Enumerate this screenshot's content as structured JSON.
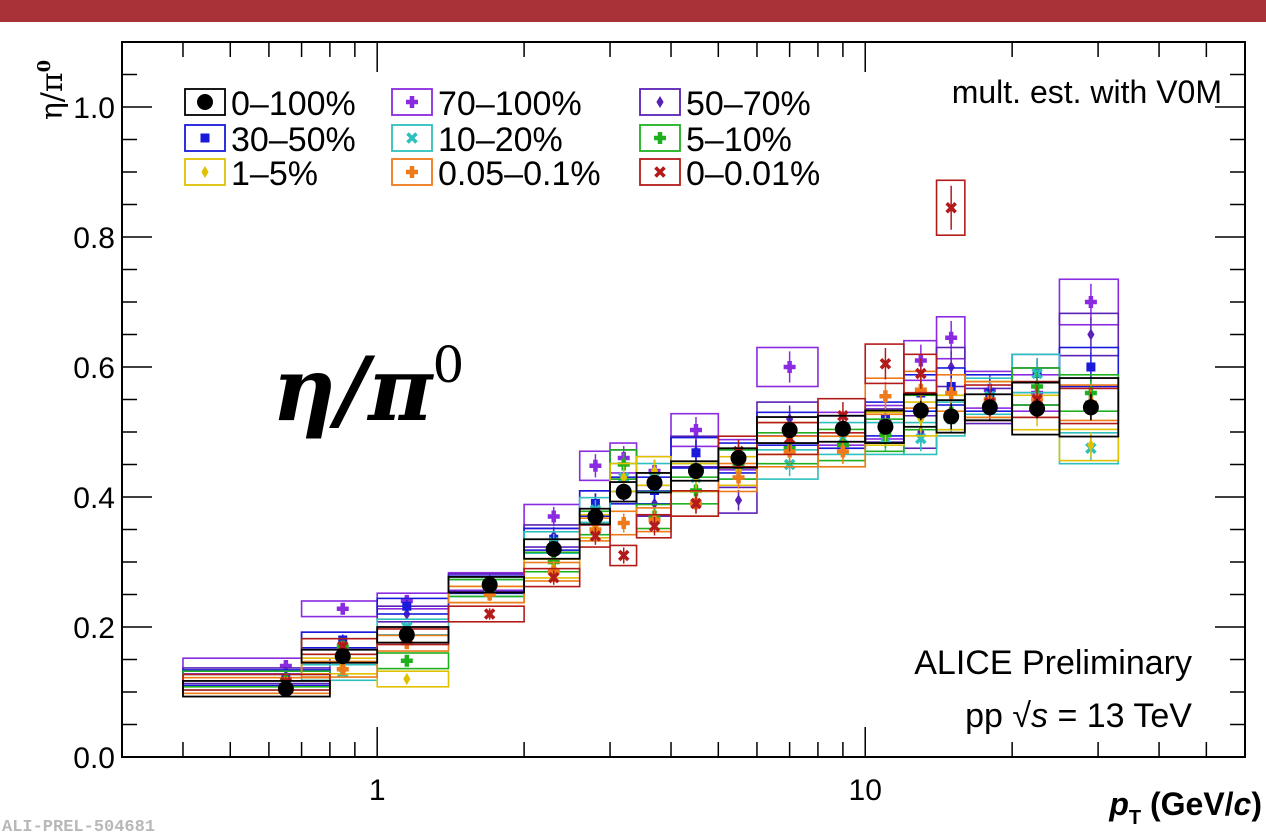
{
  "colors": {
    "topbar": "#a83237"
  },
  "footer_id": "ALI-PREL-504681",
  "chart_data": {
    "type": "scatter",
    "x_scale": "log",
    "xlim": [
      0.3,
      60
    ],
    "ylim": [
      0.0,
      1.1
    ],
    "xlabel": "p_T (GeV/c)",
    "xlabel_parts": {
      "var": "p",
      "sub": "T",
      "open": " (GeV/",
      "unit": "c",
      "close": ")"
    },
    "ylabel": "η/π⁰",
    "ylabel_parts": {
      "base": "η/π",
      "sup": "0"
    },
    "x_tick_labels": [
      {
        "value": 1,
        "label": "1"
      },
      {
        "value": 10,
        "label": "10"
      }
    ],
    "y_tick_labels": [
      {
        "value": 0.0,
        "label": "0.0"
      },
      {
        "value": 0.2,
        "label": "0.2"
      },
      {
        "value": 0.4,
        "label": "0.4"
      },
      {
        "value": 0.6,
        "label": "0.6"
      },
      {
        "value": 0.8,
        "label": "0.8"
      },
      {
        "value": 1.0,
        "label": "1.0"
      }
    ],
    "annotations": {
      "estimator": "mult. est. with V0M",
      "big_label": {
        "base": "η/π",
        "sup": "0"
      },
      "experiment": "ALICE Preliminary",
      "system": {
        "pre": "pp",
        "root": "√",
        "var": "s",
        "post": "= 13 TeV"
      }
    },
    "bins": [
      0.4,
      0.6,
      0.7,
      0.8,
      1.0,
      1.2,
      1.4,
      1.6,
      1.8,
      2.0,
      2.2,
      2.4,
      2.6,
      2.8,
      3.0,
      3.2,
      3.4,
      3.6,
      3.8,
      4.0,
      4.5,
      5.0,
      5.5,
      6.0,
      7.0,
      8.0,
      10.0,
      12.0,
      14.0,
      16.0,
      20.0,
      25.0,
      30.0,
      40.0,
      50.0
    ],
    "reference_series": {
      "name": "0–100%",
      "color": "#000000",
      "marker": "circle",
      "points": [
        {
          "x": 0.65,
          "y": 0.105,
          "xlo": 0.4,
          "xhi": 0.8,
          "sys": 0.012,
          "stat": 0.01
        },
        {
          "x": 0.85,
          "y": 0.155,
          "xlo": 0.7,
          "xhi": 1.0,
          "sys": 0.01,
          "stat": 0.01
        },
        {
          "x": 1.15,
          "y": 0.188,
          "xlo": 1.0,
          "xhi": 1.4,
          "sys": 0.012,
          "stat": 0.01
        },
        {
          "x": 1.7,
          "y": 0.265,
          "xlo": 1.4,
          "xhi": 2.0,
          "sys": 0.012,
          "stat": 0.008
        },
        {
          "x": 2.3,
          "y": 0.32,
          "xlo": 2.0,
          "xhi": 2.6,
          "sys": 0.015,
          "stat": 0.008
        },
        {
          "x": 2.8,
          "y": 0.37,
          "xlo": 2.6,
          "xhi": 3.0,
          "sys": 0.012,
          "stat": 0.008
        },
        {
          "x": 3.2,
          "y": 0.408,
          "xlo": 3.0,
          "xhi": 3.4,
          "sys": 0.015,
          "stat": 0.008
        },
        {
          "x": 3.7,
          "y": 0.422,
          "xlo": 3.4,
          "xhi": 4.0,
          "sys": 0.015,
          "stat": 0.008
        },
        {
          "x": 4.5,
          "y": 0.44,
          "xlo": 4.0,
          "xhi": 5.0,
          "sys": 0.015,
          "stat": 0.008
        },
        {
          "x": 5.5,
          "y": 0.46,
          "xlo": 5.0,
          "xhi": 6.0,
          "sys": 0.015,
          "stat": 0.01
        },
        {
          "x": 7.0,
          "y": 0.503,
          "xlo": 6.0,
          "xhi": 8.0,
          "sys": 0.02,
          "stat": 0.01
        },
        {
          "x": 9.0,
          "y": 0.505,
          "xlo": 8.0,
          "xhi": 10.0,
          "sys": 0.02,
          "stat": 0.01
        },
        {
          "x": 11.0,
          "y": 0.508,
          "xlo": 10.0,
          "xhi": 12.0,
          "sys": 0.025,
          "stat": 0.012
        },
        {
          "x": 13.0,
          "y": 0.533,
          "xlo": 12.0,
          "xhi": 14.0,
          "sys": 0.025,
          "stat": 0.015
        },
        {
          "x": 15.0,
          "y": 0.524,
          "xlo": 14.0,
          "xhi": 16.0,
          "sys": 0.025,
          "stat": 0.02
        },
        {
          "x": 18.0,
          "y": 0.538,
          "xlo": 16.0,
          "xhi": 20.0,
          "sys": 0.02,
          "stat": 0.012
        },
        {
          "x": 22.5,
          "y": 0.536,
          "xlo": 20.0,
          "xhi": 25.0,
          "sys": 0.04,
          "stat": 0.015
        },
        {
          "x": 29.0,
          "y": 0.538,
          "xlo": 25.0,
          "xhi": 33.0,
          "sys": 0.045,
          "stat": 0.02
        }
      ]
    },
    "series": [
      {
        "name": "70–100%",
        "color": "#8a2be2",
        "marker": "cross",
        "points": [
          [
            0.65,
            0.14
          ],
          [
            0.85,
            0.228
          ],
          [
            1.15,
            0.24
          ],
          [
            1.7,
            0.27
          ],
          [
            2.3,
            0.37
          ],
          [
            2.8,
            0.448
          ],
          [
            3.2,
            0.46
          ],
          [
            3.7,
            0.44
          ],
          [
            4.5,
            0.503
          ],
          [
            5.5,
            0.465
          ],
          [
            7.0,
            0.6
          ],
          [
            9.0,
            0.505
          ],
          [
            11.0,
            0.515
          ],
          [
            13.0,
            0.61
          ],
          [
            15.0,
            0.645
          ],
          [
            18.0,
            0.565
          ],
          [
            22.5,
            0.56
          ],
          [
            29.0,
            0.7
          ]
        ]
      },
      {
        "name": "50–70%",
        "color": "#5b21b6",
        "marker": "diamond",
        "points": [
          [
            0.65,
            0.125
          ],
          [
            0.85,
            0.18
          ],
          [
            1.15,
            0.22
          ],
          [
            1.7,
            0.268
          ],
          [
            2.3,
            0.34
          ],
          [
            2.8,
            0.39
          ],
          [
            3.2,
            0.45
          ],
          [
            3.7,
            0.39
          ],
          [
            4.5,
            0.47
          ],
          [
            5.5,
            0.395
          ],
          [
            7.0,
            0.52
          ],
          [
            9.0,
            0.5
          ],
          [
            11.0,
            0.51
          ],
          [
            13.0,
            0.5
          ],
          [
            15.0,
            0.6
          ],
          [
            18.0,
            0.54
          ],
          [
            22.5,
            0.57
          ],
          [
            29.0,
            0.65
          ]
        ]
      },
      {
        "name": "30–50%",
        "color": "#1a1adb",
        "marker": "square",
        "points": [
          [
            0.65,
            0.122
          ],
          [
            0.85,
            0.18
          ],
          [
            1.15,
            0.232
          ],
          [
            1.7,
            0.265
          ],
          [
            2.3,
            0.335
          ],
          [
            2.8,
            0.39
          ],
          [
            3.2,
            0.41
          ],
          [
            3.7,
            0.41
          ],
          [
            4.5,
            0.468
          ],
          [
            5.5,
            0.46
          ],
          [
            7.0,
            0.505
          ],
          [
            9.0,
            0.5
          ],
          [
            11.0,
            0.52
          ],
          [
            13.0,
            0.56
          ],
          [
            15.0,
            0.57
          ],
          [
            18.0,
            0.56
          ],
          [
            22.5,
            0.59
          ],
          [
            29.0,
            0.6
          ]
        ]
      },
      {
        "name": "10–20%",
        "color": "#2ebfbf",
        "marker": "x",
        "points": [
          [
            0.65,
            0.115
          ],
          [
            0.85,
            0.13
          ],
          [
            1.15,
            0.2
          ],
          [
            1.7,
            0.26
          ],
          [
            2.3,
            0.33
          ],
          [
            2.8,
            0.38
          ],
          [
            3.2,
            0.43
          ],
          [
            3.7,
            0.43
          ],
          [
            4.5,
            0.43
          ],
          [
            5.5,
            0.45
          ],
          [
            7.0,
            0.45
          ],
          [
            9.0,
            0.49
          ],
          [
            11.0,
            0.49
          ],
          [
            13.0,
            0.49
          ],
          [
            15.0,
            0.52
          ],
          [
            18.0,
            0.555
          ],
          [
            22.5,
            0.59
          ],
          [
            29.0,
            0.475
          ]
        ]
      },
      {
        "name": "5–10%",
        "color": "#1fb01f",
        "marker": "cross",
        "points": [
          [
            0.65,
            0.12
          ],
          [
            0.85,
            0.17
          ],
          [
            1.15,
            0.148
          ],
          [
            1.7,
            0.26
          ],
          [
            2.3,
            0.3
          ],
          [
            2.8,
            0.36
          ],
          [
            3.2,
            0.45
          ],
          [
            3.7,
            0.37
          ],
          [
            4.5,
            0.41
          ],
          [
            5.5,
            0.45
          ],
          [
            7.0,
            0.475
          ],
          [
            9.0,
            0.48
          ],
          [
            11.0,
            0.495
          ],
          [
            13.0,
            0.53
          ],
          [
            15.0,
            0.53
          ],
          [
            18.0,
            0.55
          ],
          [
            22.5,
            0.57
          ],
          [
            29.0,
            0.56
          ]
        ]
      },
      {
        "name": "1–5%",
        "color": "#e0c000",
        "marker": "diamond",
        "points": [
          [
            0.65,
            0.11
          ],
          [
            0.85,
            0.14
          ],
          [
            1.15,
            0.12
          ],
          [
            1.7,
            0.25
          ],
          [
            2.3,
            0.29
          ],
          [
            2.8,
            0.355
          ],
          [
            3.2,
            0.43
          ],
          [
            3.7,
            0.44
          ],
          [
            4.5,
            0.43
          ],
          [
            5.5,
            0.44
          ],
          [
            7.0,
            0.49
          ],
          [
            9.0,
            0.47
          ],
          [
            11.0,
            0.505
          ],
          [
            13.0,
            0.52
          ],
          [
            15.0,
            0.53
          ],
          [
            18.0,
            0.55
          ],
          [
            22.5,
            0.53
          ],
          [
            29.0,
            0.48
          ]
        ]
      },
      {
        "name": "0.05–0.1%",
        "color": "#ee7a1a",
        "marker": "cross",
        "points": [
          [
            0.65,
            0.11
          ],
          [
            0.85,
            0.135
          ],
          [
            1.15,
            0.175
          ],
          [
            1.7,
            0.25
          ],
          [
            2.3,
            0.285
          ],
          [
            2.8,
            0.35
          ],
          [
            3.2,
            0.36
          ],
          [
            3.7,
            0.365
          ],
          [
            4.5,
            0.39
          ],
          [
            5.5,
            0.43
          ],
          [
            7.0,
            0.47
          ],
          [
            9.0,
            0.47
          ],
          [
            11.0,
            0.555
          ],
          [
            13.0,
            0.565
          ],
          [
            15.0,
            0.56
          ],
          [
            18.0,
            0.55
          ],
          [
            22.5,
            0.55
          ],
          [
            29.0,
            0.545
          ]
        ]
      },
      {
        "name": "0–0.01%",
        "color": "#b31b1b",
        "marker": "x",
        "points": [
          [
            0.65,
            0.115
          ],
          [
            0.85,
            0.17
          ],
          [
            1.15,
            0.185
          ],
          [
            1.7,
            0.22
          ],
          [
            2.3,
            0.276
          ],
          [
            2.8,
            0.34
          ],
          [
            3.2,
            0.31
          ],
          [
            3.7,
            0.355
          ],
          [
            4.5,
            0.39
          ],
          [
            5.5,
            0.47
          ],
          [
            7.0,
            0.49
          ],
          [
            9.0,
            0.525
          ],
          [
            11.0,
            0.605
          ],
          [
            13.0,
            0.59
          ],
          [
            15.0,
            0.845
          ],
          [
            18.0,
            0.545
          ],
          [
            22.5,
            0.55
          ],
          [
            29.0,
            0.54
          ]
        ]
      }
    ],
    "legend": {
      "placement": "top-left",
      "columns": 3
    }
  }
}
